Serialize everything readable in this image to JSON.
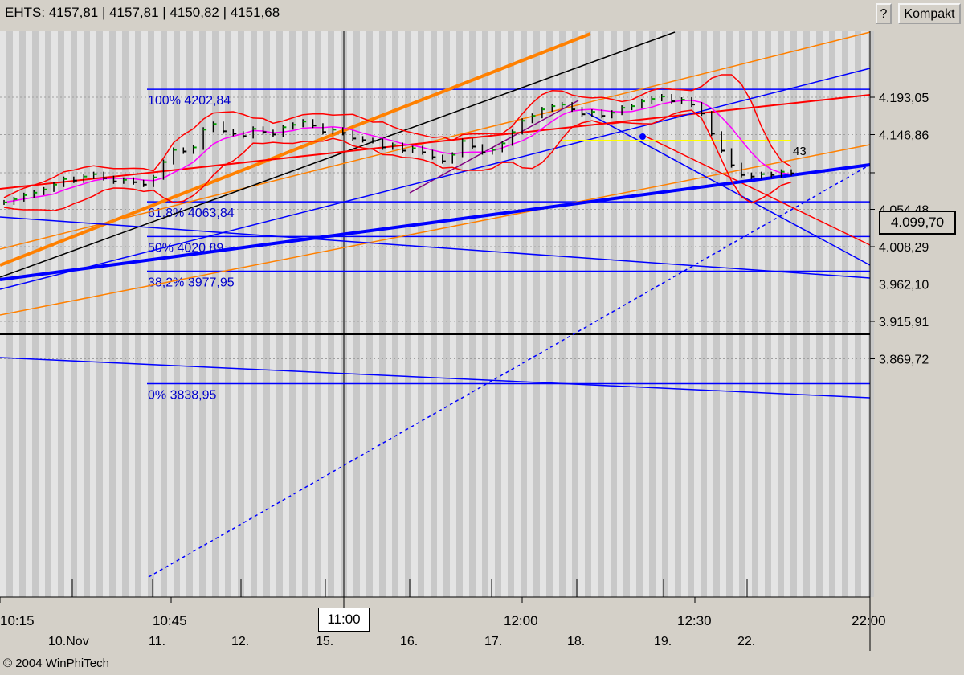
{
  "header": {
    "symbol_quote": "EHTS: 4157,81 | 4157,81 | 4150,82 | 4151,68",
    "help_label": "?",
    "compact_label": "Kompakt"
  },
  "footer": {
    "copyright": "© 2004 WinPhiTech"
  },
  "cursor": {
    "time_label": "11:00"
  },
  "current_price_label": "4.099,70",
  "colors": {
    "background": "#d4d0c8",
    "stripe_light": "#e4e4e4",
    "stripe_dark": "#c8c8c8",
    "fib_blue": "#0000ff",
    "fib_label": "#0000cc",
    "price_bar": "#000000",
    "up_tick": "#00a000",
    "bollinger": "#ff0000",
    "moving_average": "#ff00ff",
    "trend_orange": "#ff8000",
    "trend_black": "#000000",
    "trend_purple": "#800080",
    "yellow_line": "#ffff00"
  },
  "chart_data": {
    "type": "line",
    "y_axis": {
      "ticks": [
        "4.193,05",
        "4.146,86",
        "4.099,70",
        "4.054,48",
        "4.008,29",
        "3.962,10",
        "3.915,91",
        "3.869,72"
      ],
      "tick_values": [
        4193.05,
        4146.86,
        4099.7,
        4054.48,
        4008.29,
        3962.1,
        3915.91,
        3869.72
      ],
      "range": [
        3820,
        4240
      ]
    },
    "x_axis": {
      "time_labels": [
        "10:15",
        "10:45",
        "12:00",
        "12:30",
        "22:00"
      ],
      "date_labels": [
        "10.Nov",
        "11.",
        "12.",
        "15.",
        "16.",
        "17.",
        "18.",
        "19.",
        "22."
      ]
    },
    "fibonacci_levels": [
      {
        "label": "100% 4202,84",
        "value": 4202.84
      },
      {
        "label": "61,8% 4063,84",
        "value": 4063.84
      },
      {
        "label": "50% 4020,89",
        "value": 4020.89
      },
      {
        "label": "38,2% 3977,95",
        "value": 3977.95
      },
      {
        "label": "0% 3838,95",
        "value": 3838.95
      }
    ],
    "annotation": "43",
    "series": [
      {
        "name": "",
        "values": [
          4063,
          4067,
          4072,
          4075,
          4079,
          4085,
          4092,
          4090,
          4095,
          4098,
          4093,
          4089,
          4091,
          4088,
          4085,
          4094,
          4113,
          4128,
          4126,
          4131,
          4153,
          4160,
          4151,
          4148,
          4145,
          4154,
          4150,
          4147,
          4156,
          4159,
          4163,
          4158,
          4150,
          4153,
          4149,
          4142,
          4140,
          4139,
          4131,
          4134,
          4127,
          4130,
          4125,
          4119,
          4114,
          4122,
          4139,
          4132,
          4125,
          4128,
          4136,
          4150,
          4164,
          4170,
          4178,
          4182,
          4184,
          4178,
          4172,
          4175,
          4170,
          4174,
          4180,
          4182,
          4188,
          4191,
          4194,
          4188,
          4190,
          4184,
          4173,
          4148,
          4127,
          4109,
          4097,
          4095,
          4098,
          4097,
          4101,
          4099
        ]
      }
    ]
  }
}
